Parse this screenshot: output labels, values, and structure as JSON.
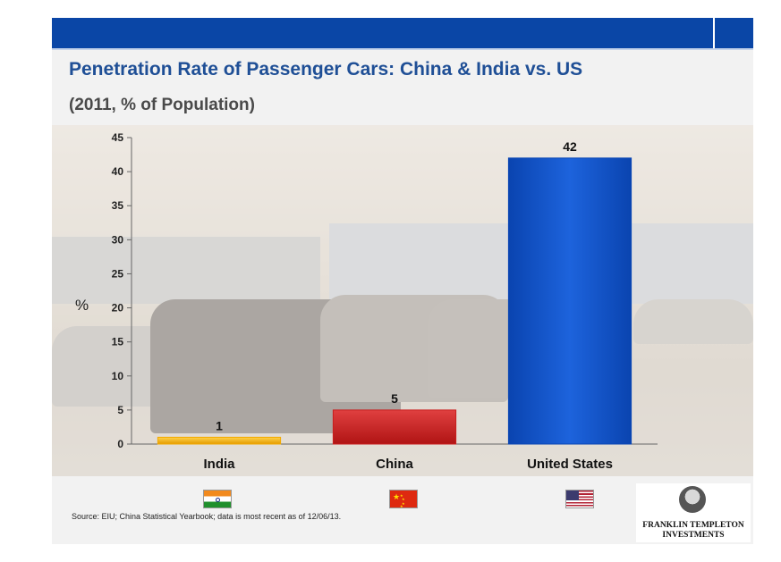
{
  "header": {
    "title": "Penetration Rate of Passenger Cars: China & India vs. US",
    "subtitle": "(2011, % of Population)"
  },
  "chart_data": {
    "type": "bar",
    "title": "Penetration Rate of Passenger Cars: China & India vs. US",
    "subtitle": "(2011, % of Population)",
    "xlabel": "",
    "ylabel": "%",
    "ylim": [
      0,
      45
    ],
    "yticks": [
      0,
      5,
      10,
      15,
      20,
      25,
      30,
      35,
      40,
      45
    ],
    "categories": [
      "India",
      "China",
      "United States"
    ],
    "values": [
      1,
      5,
      42
    ],
    "bar_colors": [
      "#f2a900",
      "#c81e1e",
      "#0a46b4"
    ],
    "data_labels": [
      "1",
      "5",
      "42"
    ],
    "grid": false,
    "legend": "none"
  },
  "flags": {
    "india": "india-flag-icon",
    "china": "china-flag-icon",
    "us": "us-flag-icon"
  },
  "footer": {
    "source": "Source: EIU;  China Statistical Yearbook; data is most recent as of 12/06/13."
  },
  "logo": {
    "line1": "FRANKLIN TEMPLETON",
    "line2": "INVESTMENTS"
  },
  "colors": {
    "brand_blue": "#0a46a6",
    "title_blue": "#1f4f96"
  }
}
